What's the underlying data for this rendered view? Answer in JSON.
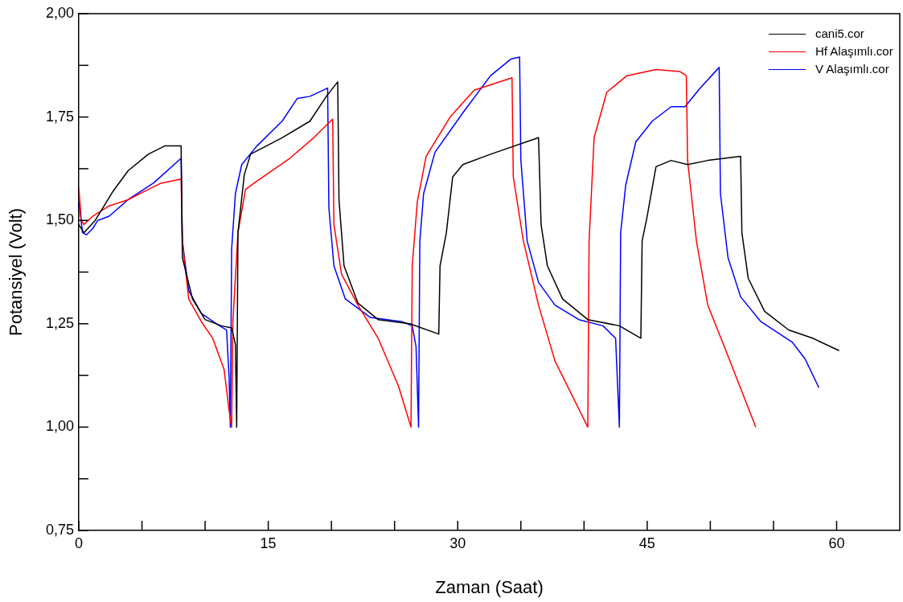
{
  "chart_data": {
    "type": "line",
    "xlabel": "Zaman (Saat)",
    "ylabel": "Potansiyel (Volt)",
    "xlim": [
      0,
      65
    ],
    "ylim": [
      0.75,
      2
    ],
    "xticks": [
      0,
      {
        "value": 5,
        "label": null
      },
      {
        "value": 10,
        "label": null
      },
      15,
      {
        "value": 20,
        "label": null
      },
      {
        "value": 25,
        "label": null
      },
      30,
      {
        "value": 35,
        "label": null
      },
      {
        "value": 40,
        "label": null
      },
      45,
      {
        "value": 50,
        "label": null
      },
      {
        "value": 55,
        "label": null
      },
      60
    ],
    "yticks": [
      {
        "value": 0.75,
        "label": "0,75"
      },
      {
        "value": 0.875,
        "label": null
      },
      {
        "value": 1,
        "label": "1,00"
      },
      {
        "value": 1.125,
        "label": null
      },
      {
        "value": 1.25,
        "label": "1,25"
      },
      {
        "value": 1.375,
        "label": null
      },
      {
        "value": 1.5,
        "label": "1,50"
      },
      {
        "value": 1.625,
        "label": null
      },
      {
        "value": 1.75,
        "label": "1,75"
      },
      {
        "value": 1.875,
        "label": null
      },
      {
        "value": 2,
        "label": "2,00"
      }
    ],
    "grid": false,
    "legend": "top right",
    "marker": "none",
    "line_style": "solid",
    "series": [
      {
        "name": "cani5.cor",
        "color": "#000000",
        "x": [
          0,
          0.4,
          1.3,
          2.7,
          3.9,
          5.5,
          6.8,
          8.1,
          8.2,
          9.0,
          10.0,
          11.3,
          12.1,
          12.4,
          12.5,
          12.6,
          13.1,
          13.6,
          16.1,
          18.3,
          19.6,
          20.5,
          20.6,
          21.0,
          22.1,
          23.7,
          26.2,
          28.5,
          28.6,
          29.1,
          29.6,
          30.4,
          32.6,
          36.4,
          36.6,
          37.1,
          38.3,
          40.3,
          42.8,
          44.5,
          44.6,
          45.0,
          45.7,
          46.9,
          48.2,
          49.8,
          52.4,
          52.5,
          53.0,
          54.3,
          56.2,
          58.1,
          60.2
        ],
        "values": [
          1.49,
          1.47,
          1.5,
          1.57,
          1.62,
          1.66,
          1.68,
          1.68,
          1.41,
          1.31,
          1.26,
          1.245,
          1.24,
          1.2,
          1.0,
          1.47,
          1.61,
          1.66,
          1.7,
          1.74,
          1.8,
          1.835,
          1.55,
          1.39,
          1.3,
          1.26,
          1.25,
          1.225,
          1.39,
          1.47,
          1.605,
          1.635,
          1.66,
          1.7,
          1.49,
          1.39,
          1.31,
          1.26,
          1.245,
          1.215,
          1.45,
          1.51,
          1.63,
          1.645,
          1.635,
          1.645,
          1.655,
          1.47,
          1.36,
          1.28,
          1.235,
          1.215,
          1.185
        ]
      },
      {
        "name": "Hf Alaşımlı.cor",
        "color": "#ff0000",
        "x": [
          0,
          0.2,
          0.4,
          1.1,
          2.4,
          3.9,
          5.2,
          6.5,
          8.1,
          8.2,
          8.7,
          9.7,
          10.6,
          11.5,
          11.9,
          12.1,
          12.2,
          12.6,
          13.2,
          14.1,
          16.7,
          18.6,
          20.1,
          20.2,
          20.8,
          22.1,
          23.7,
          25.3,
          26.3,
          26.4,
          26.8,
          27.5,
          29.4,
          31.3,
          34.3,
          34.4,
          35.2,
          36.4,
          37.7,
          40.3,
          40.4,
          40.8,
          41.8,
          43.4,
          45.7,
          47.6,
          48.1,
          48.2,
          48.9,
          49.8,
          51.1,
          53.6
        ],
        "values": [
          1.58,
          1.5,
          1.49,
          1.51,
          1.535,
          1.55,
          1.57,
          1.59,
          1.6,
          1.45,
          1.31,
          1.255,
          1.215,
          1.14,
          1.04,
          1.0,
          1.255,
          1.47,
          1.575,
          1.595,
          1.65,
          1.7,
          1.745,
          1.49,
          1.37,
          1.295,
          1.215,
          1.1,
          1.0,
          1.39,
          1.545,
          1.655,
          1.75,
          1.815,
          1.845,
          1.605,
          1.45,
          1.295,
          1.16,
          1.0,
          1.45,
          1.7,
          1.81,
          1.85,
          1.865,
          1.86,
          1.85,
          1.645,
          1.45,
          1.295,
          1.195,
          1.0
        ]
      },
      {
        "name": "V Alaşımlı.cor",
        "color": "#0000ff",
        "x": [
          0,
          0.3,
          0.6,
          1.1,
          1.5,
          2.4,
          3.9,
          5.9,
          8.1,
          8.2,
          8.7,
          9.7,
          10.9,
          11.7,
          11.9,
          12.0,
          12.1,
          12.4,
          12.9,
          14.1,
          16.1,
          17.3,
          18.3,
          19.7,
          19.8,
          20.2,
          21.1,
          23.1,
          25.6,
          26.4,
          26.7,
          26.9,
          27.0,
          27.3,
          28.2,
          30.4,
          32.6,
          34.2,
          34.9,
          35.0,
          35.5,
          36.4,
          37.7,
          39.6,
          41.5,
          42.5,
          42.8,
          42.9,
          43.3,
          44.1,
          45.4,
          46.9,
          48.0,
          49.2,
          50.7,
          50.8,
          51.4,
          52.4,
          54.0,
          56.5,
          57.5,
          58.6
        ],
        "values": [
          1.545,
          1.47,
          1.465,
          1.48,
          1.5,
          1.51,
          1.55,
          1.59,
          1.65,
          1.45,
          1.33,
          1.275,
          1.25,
          1.235,
          1.12,
          1.0,
          1.43,
          1.565,
          1.635,
          1.68,
          1.74,
          1.795,
          1.8,
          1.82,
          1.53,
          1.39,
          1.31,
          1.265,
          1.255,
          1.245,
          1.195,
          1.0,
          1.45,
          1.565,
          1.665,
          1.76,
          1.85,
          1.89,
          1.895,
          1.645,
          1.45,
          1.35,
          1.295,
          1.26,
          1.245,
          1.215,
          1.0,
          1.47,
          1.585,
          1.69,
          1.74,
          1.775,
          1.775,
          1.82,
          1.87,
          1.565,
          1.41,
          1.315,
          1.255,
          1.205,
          1.165,
          1.095
        ]
      }
    ]
  }
}
